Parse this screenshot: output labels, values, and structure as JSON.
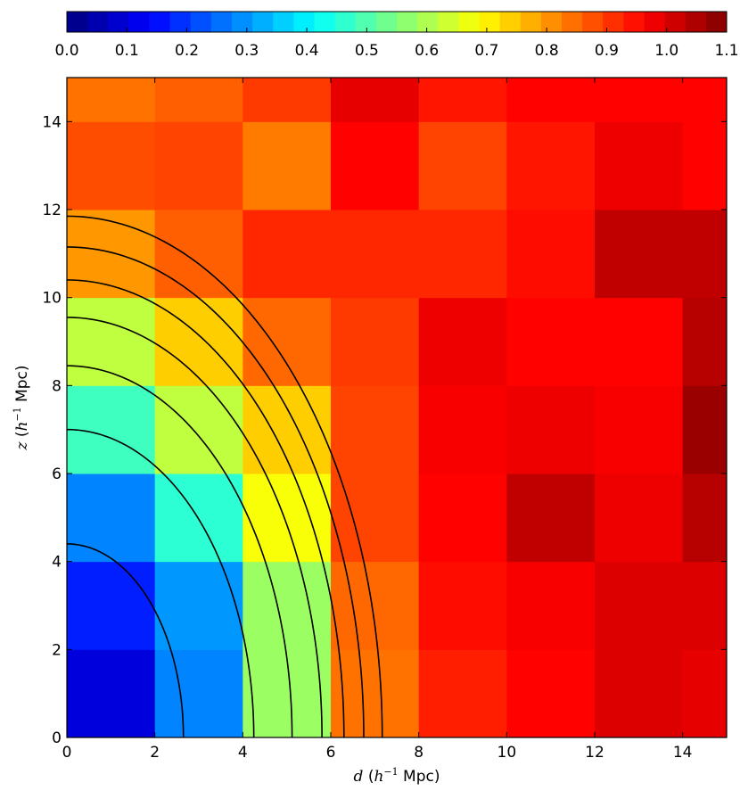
{
  "chart_data": {
    "type": "heatmap",
    "xlabel_var": "d",
    "ylabel_var": "z",
    "label_unit_base": "h",
    "label_unit_exp": "−1",
    "label_unit_tail": " Mpc)",
    "label_open": "(",
    "xlim": [
      0,
      15
    ],
    "ylim": [
      0,
      15
    ],
    "x_ticks": [
      0,
      2,
      4,
      6,
      8,
      10,
      12,
      14
    ],
    "y_ticks": [
      0,
      2,
      4,
      6,
      8,
      10,
      12,
      14
    ],
    "x_edges": [
      0,
      2,
      4,
      6,
      8,
      10,
      12,
      14,
      15
    ],
    "y_edges": [
      0,
      2,
      4,
      6,
      8,
      10,
      12,
      14,
      15
    ],
    "values": [
      [
        0.1,
        0.28,
        0.58,
        0.84,
        0.93,
        0.96,
        1.0,
        0.99
      ],
      [
        0.17,
        0.3,
        0.58,
        0.85,
        0.95,
        0.97,
        1.0,
        1.0
      ],
      [
        0.28,
        0.46,
        0.68,
        0.89,
        0.96,
        1.03,
        0.98,
        1.04
      ],
      [
        0.48,
        0.62,
        0.74,
        0.89,
        0.97,
        0.98,
        0.97,
        1.07
      ],
      [
        0.62,
        0.74,
        0.85,
        0.9,
        0.98,
        0.96,
        0.96,
        1.04
      ],
      [
        0.8,
        0.86,
        0.92,
        0.92,
        0.92,
        0.95,
        1.03,
        1.03
      ],
      [
        0.88,
        0.89,
        0.83,
        0.96,
        0.89,
        0.94,
        0.98,
        0.96
      ],
      [
        0.84,
        0.86,
        0.9,
        0.99,
        0.94,
        0.96,
        0.96,
        0.96
      ]
    ],
    "colorbar": {
      "range": [
        0.0,
        1.1
      ],
      "ticks": [
        "0.0",
        "0.1",
        "0.2",
        "0.3",
        "0.4",
        "0.5",
        "0.6",
        "0.7",
        "0.8",
        "0.9",
        "1.0",
        "1.1"
      ]
    },
    "contours": [
      {
        "r_d": 2.65,
        "r_z": 4.4
      },
      {
        "r_d": 4.25,
        "r_z": 7.0
      },
      {
        "r_d": 5.12,
        "r_z": 8.45
      },
      {
        "r_d": 5.8,
        "r_z": 9.55
      },
      {
        "r_d": 6.3,
        "r_z": 10.4
      },
      {
        "r_d": 6.75,
        "r_z": 11.15
      },
      {
        "r_d": 7.17,
        "r_z": 11.85
      }
    ],
    "colormap": "jet",
    "grid": false
  }
}
